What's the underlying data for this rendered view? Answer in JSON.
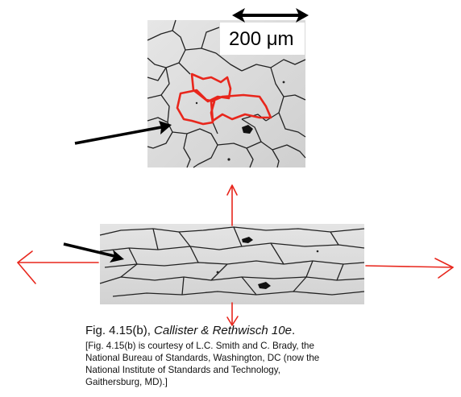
{
  "scale_bar": {
    "label": "200 μm"
  },
  "caption": {
    "figure_ref": "Fig. 4.15(b),",
    "book_title": "Callister & Rethwisch 10e",
    "period": ".",
    "credit_lines": [
      "[Fig. 4.15(b) is courtesy of L.C. Smith and C. Brady, the",
      "National Bureau of Standards, Washington, DC (now the",
      "National Institute of Standards and Technology,",
      "Gaithersburg, MD).]"
    ]
  },
  "colors": {
    "outline_red": "#e8261c",
    "arrow_black": "#000000",
    "grain_boundary": "#222222",
    "micrograph_bg": "#dcdcdc"
  }
}
